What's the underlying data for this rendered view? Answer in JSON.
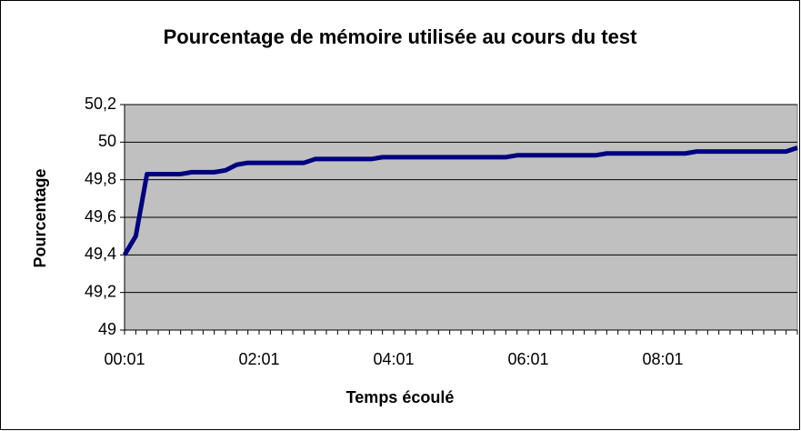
{
  "chart_data": {
    "type": "line",
    "title": "Pourcentage de mémoire utilisée au cours du test",
    "x_label": "Temps écoulé",
    "y_label": "Pourcentage",
    "categories": [
      "00:01",
      null,
      null,
      null,
      null,
      null,
      null,
      null,
      null,
      null,
      null,
      null,
      "02:01",
      null,
      null,
      null,
      null,
      null,
      null,
      null,
      null,
      null,
      null,
      null,
      "04:01",
      null,
      null,
      null,
      null,
      null,
      null,
      null,
      null,
      null,
      null,
      null,
      "06:01",
      null,
      null,
      null,
      null,
      null,
      null,
      null,
      null,
      null,
      null,
      null,
      "08:01",
      null,
      null,
      null,
      null,
      null,
      null,
      null,
      null,
      null,
      null,
      null,
      null
    ],
    "values": [
      49.4,
      49.5,
      49.83,
      49.83,
      49.83,
      49.83,
      49.84,
      49.84,
      49.84,
      49.85,
      49.88,
      49.89,
      49.89,
      49.89,
      49.89,
      49.89,
      49.89,
      49.91,
      49.91,
      49.91,
      49.91,
      49.91,
      49.91,
      49.92,
      49.92,
      49.92,
      49.92,
      49.92,
      49.92,
      49.92,
      49.92,
      49.92,
      49.92,
      49.92,
      49.92,
      49.93,
      49.93,
      49.93,
      49.93,
      49.93,
      49.93,
      49.93,
      49.93,
      49.94,
      49.94,
      49.94,
      49.94,
      49.94,
      49.94,
      49.94,
      49.94,
      49.95,
      49.95,
      49.95,
      49.95,
      49.95,
      49.95,
      49.95,
      49.95,
      49.95,
      49.97
    ],
    "color": "#000080",
    "ylim": [
      49,
      50.2
    ],
    "yticks": [
      49,
      {
        "value": 49.2,
        "label": "49,2"
      },
      {
        "value": 49.4,
        "label": "49,4"
      },
      {
        "value": 49.6,
        "label": "49,6"
      },
      {
        "value": 49.8,
        "label": "49,8"
      },
      50,
      {
        "value": 50.2,
        "label": "50,2"
      }
    ],
    "grid": true,
    "plot_background": "#c0c0c0"
  }
}
